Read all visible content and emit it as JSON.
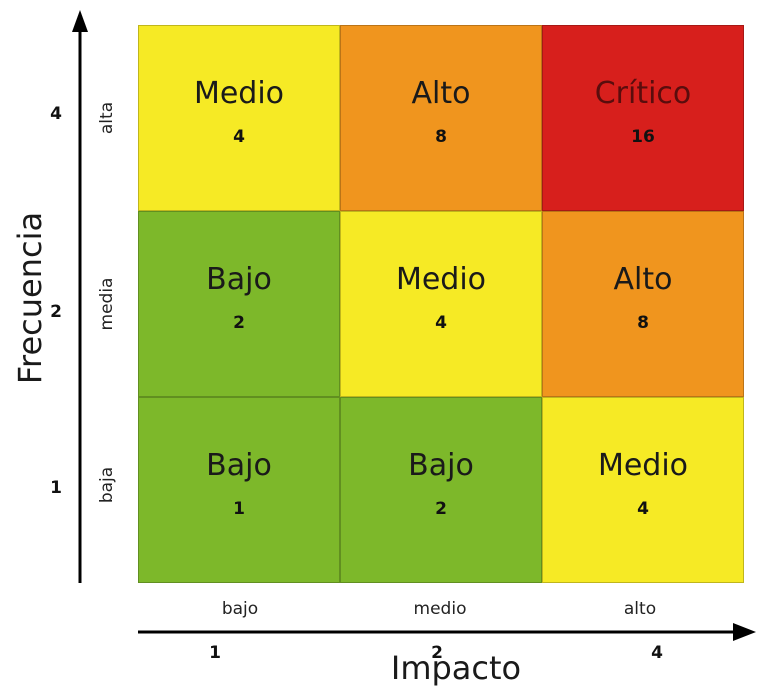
{
  "y_axis": {
    "title": "Frecuencia",
    "categories": [
      "alta",
      "media",
      "baja"
    ],
    "values": [
      "4",
      "2",
      "1"
    ]
  },
  "x_axis": {
    "title": "Impacto",
    "categories": [
      "bajo",
      "medio",
      "alto"
    ],
    "values": [
      "1",
      "2",
      "4"
    ]
  },
  "matrix": {
    "rows": [
      [
        {
          "level": "Medio",
          "score": "4",
          "color": "#f6ea25"
        },
        {
          "level": "Alto",
          "score": "8",
          "color": "#f0951e"
        },
        {
          "level": "Crítico",
          "score": "16",
          "color": "#d71f1c"
        }
      ],
      [
        {
          "level": "Bajo",
          "score": "2",
          "color": "#7db82a"
        },
        {
          "level": "Medio",
          "score": "4",
          "color": "#f6ea25"
        },
        {
          "level": "Alto",
          "score": "8",
          "color": "#f0951e"
        }
      ],
      [
        {
          "level": "Bajo",
          "score": "1",
          "color": "#7db82a"
        },
        {
          "level": "Bajo",
          "score": "2",
          "color": "#7db82a"
        },
        {
          "level": "Medio",
          "score": "4",
          "color": "#f6ea25"
        }
      ]
    ]
  }
}
